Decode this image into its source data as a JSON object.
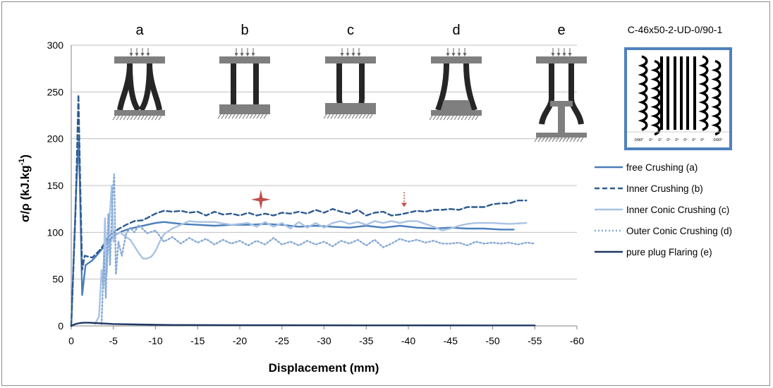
{
  "chart_data": {
    "type": "line",
    "title": "",
    "xlabel": "Displacement (mm)",
    "ylabel": "σ/ρ  (kJ.kg",
    "ylabel_sup": "-1",
    "ylabel_close": ")",
    "xlim": [
      0,
      -60
    ],
    "ylim": [
      0,
      300
    ],
    "x_ticks": [
      0,
      -5,
      -10,
      -15,
      -20,
      -25,
      -30,
      -35,
      -40,
      -45,
      -50,
      -55,
      -60
    ],
    "y_ticks": [
      0,
      50,
      100,
      150,
      200,
      250,
      300
    ],
    "grid": true,
    "legend_position": "right",
    "series": [
      {
        "name": "free Crushing  (a)",
        "color": "#4a7ebb",
        "dash": "solid",
        "points": [
          [
            0,
            0
          ],
          [
            -0.6,
            150
          ],
          [
            -0.9,
            200
          ],
          [
            -1.1,
            120
          ],
          [
            -1.3,
            33
          ],
          [
            -1.7,
            65
          ],
          [
            -2.5,
            70
          ],
          [
            -3,
            75
          ],
          [
            -4,
            86
          ],
          [
            -5,
            96
          ],
          [
            -6,
            101
          ],
          [
            -7,
            104
          ],
          [
            -8,
            106
          ],
          [
            -9,
            108
          ],
          [
            -10,
            110
          ],
          [
            -11,
            111
          ],
          [
            -12,
            110
          ],
          [
            -13,
            109
          ],
          [
            -15,
            108
          ],
          [
            -17,
            107
          ],
          [
            -19,
            108
          ],
          [
            -21,
            108
          ],
          [
            -23,
            109
          ],
          [
            -25,
            108
          ],
          [
            -27,
            106
          ],
          [
            -29,
            107
          ],
          [
            -31,
            106
          ],
          [
            -33,
            105
          ],
          [
            -35,
            107
          ],
          [
            -37,
            105
          ],
          [
            -39,
            107
          ],
          [
            -41,
            105
          ],
          [
            -43,
            104
          ],
          [
            -45,
            105
          ],
          [
            -47,
            104
          ],
          [
            -49,
            104
          ],
          [
            -51,
            103
          ],
          [
            -52.5,
            103
          ]
        ]
      },
      {
        "name": "Inner Crushing  (b)",
        "color": "#2e5a8f",
        "dash": "dashed",
        "points": [
          [
            0,
            0
          ],
          [
            -0.5,
            120
          ],
          [
            -0.85,
            247
          ],
          [
            -1.1,
            140
          ],
          [
            -1.3,
            60
          ],
          [
            -1.6,
            75
          ],
          [
            -2.5,
            73
          ],
          [
            -3.5,
            82
          ],
          [
            -4.5,
            96
          ],
          [
            -5.5,
            103
          ],
          [
            -6.5,
            108
          ],
          [
            -7.5,
            112
          ],
          [
            -8.5,
            113
          ],
          [
            -10,
            120
          ],
          [
            -11,
            123
          ],
          [
            -12,
            122
          ],
          [
            -13,
            123
          ],
          [
            -14,
            121
          ],
          [
            -15,
            122
          ],
          [
            -16,
            118
          ],
          [
            -17,
            122
          ],
          [
            -18,
            119
          ],
          [
            -19,
            120
          ],
          [
            -20,
            118
          ],
          [
            -21,
            121
          ],
          [
            -22,
            118
          ],
          [
            -23,
            120
          ],
          [
            -24,
            118
          ],
          [
            -25,
            121
          ],
          [
            -26,
            120
          ],
          [
            -27,
            122
          ],
          [
            -28,
            120
          ],
          [
            -29,
            124
          ],
          [
            -30,
            121
          ],
          [
            -31,
            125
          ],
          [
            -32,
            122
          ],
          [
            -33,
            120
          ],
          [
            -34,
            124
          ],
          [
            -35,
            118
          ],
          [
            -36,
            121
          ],
          [
            -37,
            122
          ],
          [
            -38,
            118
          ],
          [
            -39,
            119
          ],
          [
            -40,
            121
          ],
          [
            -41,
            123
          ],
          [
            -42,
            122
          ],
          [
            -43,
            124
          ],
          [
            -44,
            124
          ],
          [
            -45,
            125
          ],
          [
            -46,
            124
          ],
          [
            -47,
            127
          ],
          [
            -48,
            127
          ],
          [
            -49,
            127
          ],
          [
            -50,
            130
          ],
          [
            -51,
            131
          ],
          [
            -52,
            131
          ],
          [
            -53,
            134
          ],
          [
            -54,
            134
          ]
        ]
      },
      {
        "name": "Inner Conic Crushing  (c)",
        "color": "#a8c3e4",
        "dash": "solid",
        "points": [
          [
            -2.8,
            2
          ],
          [
            -3.3,
            10
          ],
          [
            -3.6,
            60
          ],
          [
            -3.8,
            40
          ],
          [
            -4.0,
            115
          ],
          [
            -4.2,
            55
          ],
          [
            -4.5,
            110
          ],
          [
            -4.8,
            150
          ],
          [
            -5.0,
            90
          ],
          [
            -5.3,
            98
          ],
          [
            -5.8,
            100
          ],
          [
            -6.5,
            95
          ],
          [
            -7,
            92
          ],
          [
            -7.5,
            85
          ],
          [
            -8,
            78
          ],
          [
            -8.5,
            72
          ],
          [
            -9,
            72
          ],
          [
            -9.5,
            74
          ],
          [
            -10,
            80
          ],
          [
            -10.5,
            90
          ],
          [
            -11,
            98
          ],
          [
            -12,
            104
          ],
          [
            -13,
            108
          ],
          [
            -14,
            112
          ],
          [
            -15,
            111
          ],
          [
            -17,
            111
          ],
          [
            -19,
            108
          ],
          [
            -21,
            110
          ],
          [
            -22,
            106
          ],
          [
            -23,
            111
          ],
          [
            -24,
            106
          ],
          [
            -25,
            110
          ],
          [
            -26,
            104
          ],
          [
            -27,
            111
          ],
          [
            -28,
            105
          ],
          [
            -29,
            110
          ],
          [
            -30,
            105
          ],
          [
            -31,
            110
          ],
          [
            -32,
            112
          ],
          [
            -33,
            109
          ],
          [
            -34,
            111
          ],
          [
            -35,
            108
          ],
          [
            -36,
            112
          ],
          [
            -37,
            110
          ],
          [
            -38,
            112
          ],
          [
            -39,
            110
          ],
          [
            -40,
            112
          ],
          [
            -41,
            112
          ],
          [
            -42,
            109
          ],
          [
            -43,
            106
          ],
          [
            -44,
            102
          ],
          [
            -45,
            104
          ],
          [
            -46,
            107
          ],
          [
            -47,
            109
          ],
          [
            -48,
            110
          ],
          [
            -50,
            110
          ],
          [
            -52,
            109
          ],
          [
            -54,
            110
          ]
        ]
      },
      {
        "name": "Outer Conic Crushing  (d)",
        "color": "#86a9d6",
        "dash": "dotted",
        "points": [
          [
            -3.6,
            2
          ],
          [
            -3.9,
            80
          ],
          [
            -4.1,
            30
          ],
          [
            -4.4,
            120
          ],
          [
            -4.6,
            65
          ],
          [
            -4.9,
            140
          ],
          [
            -5.1,
            162
          ],
          [
            -5.3,
            55
          ],
          [
            -5.6,
            90
          ],
          [
            -6,
            75
          ],
          [
            -6.5,
            98
          ],
          [
            -7,
            105
          ],
          [
            -7.5,
            100
          ],
          [
            -8,
            108
          ],
          [
            -9,
            99
          ],
          [
            -10,
            102
          ],
          [
            -11,
            90
          ],
          [
            -12,
            95
          ],
          [
            -13,
            88
          ],
          [
            -14,
            94
          ],
          [
            -15,
            89
          ],
          [
            -16,
            93
          ],
          [
            -17,
            87
          ],
          [
            -18,
            92
          ],
          [
            -19,
            88
          ],
          [
            -20,
            91
          ],
          [
            -21,
            86
          ],
          [
            -22,
            91
          ],
          [
            -23,
            87
          ],
          [
            -24,
            94
          ],
          [
            -25,
            87
          ],
          [
            -26,
            90
          ],
          [
            -27,
            86
          ],
          [
            -28,
            91
          ],
          [
            -29,
            87
          ],
          [
            -30,
            90
          ],
          [
            -31,
            85
          ],
          [
            -32,
            91
          ],
          [
            -33,
            88
          ],
          [
            -34,
            92
          ],
          [
            -35,
            86
          ],
          [
            -36,
            92
          ],
          [
            -37,
            84
          ],
          [
            -38,
            88
          ],
          [
            -39,
            93
          ],
          [
            -40,
            90
          ],
          [
            -41,
            92
          ],
          [
            -42,
            89
          ],
          [
            -43,
            91
          ],
          [
            -44,
            88
          ],
          [
            -45,
            88
          ],
          [
            -46,
            89
          ],
          [
            -47,
            86
          ],
          [
            -48,
            90
          ],
          [
            -49,
            88
          ],
          [
            -50,
            89
          ],
          [
            -51,
            88
          ],
          [
            -52,
            89
          ],
          [
            -53,
            87
          ],
          [
            -54,
            89
          ],
          [
            -55,
            88
          ]
        ]
      },
      {
        "name": "pure plug Flaring  (e)",
        "color": "#1f3864",
        "dash": "solid",
        "points": [
          [
            0,
            0
          ],
          [
            -0.5,
            2
          ],
          [
            -1,
            3
          ],
          [
            -1.5,
            3.5
          ],
          [
            -2,
            3.5
          ],
          [
            -3,
            3
          ],
          [
            -5,
            2
          ],
          [
            -8,
            1.5
          ],
          [
            -12,
            1
          ],
          [
            -20,
            0.8
          ],
          [
            -30,
            0.7
          ],
          [
            -40,
            0.6
          ],
          [
            -50,
            0.5
          ],
          [
            -55,
            0.5
          ]
        ]
      }
    ],
    "annotations": {
      "star_marker": {
        "x": -22.5,
        "y": 135,
        "color": "#c0504d"
      },
      "dashed_arrow": {
        "x": -39.5,
        "y_from": 143,
        "y_to": 127,
        "color": "#c0504d"
      }
    }
  },
  "modes": [
    {
      "letter": "a",
      "name": "free"
    },
    {
      "letter": "b",
      "name": "inner"
    },
    {
      "letter": "c",
      "name": "inner-conic"
    },
    {
      "letter": "d",
      "name": "outer-conic"
    },
    {
      "letter": "e",
      "name": "plug"
    }
  ],
  "specimen": {
    "title": "C-46x50-2-UD-0/90-1",
    "ply_labels": [
      "0/90°",
      "0°",
      "0°",
      "0°",
      "0°",
      "0°",
      "0°",
      "0°",
      "0/90°"
    ],
    "border_color": "#4f81bd"
  }
}
